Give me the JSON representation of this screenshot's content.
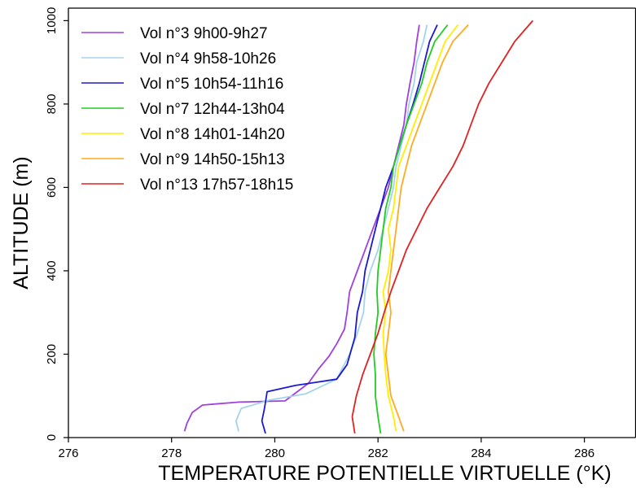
{
  "chart_data": {
    "type": "line",
    "title": "",
    "xlabel": "TEMPERATURE POTENTIELLE VIRTUELLE (°K)",
    "ylabel": "ALTITUDE (m)",
    "xlim": [
      276,
      287
    ],
    "ylim": [
      0,
      1030
    ],
    "xticks": [
      276,
      278,
      280,
      282,
      284,
      286
    ],
    "yticks": [
      0,
      200,
      400,
      600,
      800,
      1000
    ],
    "grid": false,
    "legend_position": "top-left",
    "series": [
      {
        "name": "Vol n°3 9h00-9h27",
        "color": "#a040e0",
        "points": [
          [
            278.25,
            15
          ],
          [
            278.3,
            35
          ],
          [
            278.4,
            60
          ],
          [
            278.6,
            78
          ],
          [
            279.3,
            85
          ],
          [
            280.2,
            88
          ],
          [
            280.65,
            130
          ],
          [
            280.85,
            165
          ],
          [
            281.05,
            195
          ],
          [
            281.2,
            225
          ],
          [
            281.35,
            260
          ],
          [
            281.4,
            300
          ],
          [
            281.45,
            350
          ],
          [
            281.6,
            400
          ],
          [
            281.75,
            450
          ],
          [
            281.9,
            500
          ],
          [
            282.05,
            550
          ],
          [
            282.2,
            600
          ],
          [
            282.3,
            650
          ],
          [
            282.4,
            700
          ],
          [
            282.5,
            750
          ],
          [
            282.55,
            800
          ],
          [
            282.62,
            850
          ],
          [
            282.7,
            900
          ],
          [
            282.75,
            950
          ],
          [
            282.8,
            990
          ]
        ]
      },
      {
        "name": "Vol n°4 9h58-10h26",
        "color": "#a6d3ec",
        "points": [
          [
            279.3,
            15
          ],
          [
            279.25,
            40
          ],
          [
            279.35,
            70
          ],
          [
            279.9,
            90
          ],
          [
            280.6,
            105
          ],
          [
            281.2,
            140
          ],
          [
            281.45,
            200
          ],
          [
            281.6,
            250
          ],
          [
            281.72,
            300
          ],
          [
            281.75,
            350
          ],
          [
            281.85,
            400
          ],
          [
            282.0,
            450
          ],
          [
            282.1,
            500
          ],
          [
            282.2,
            550
          ],
          [
            282.3,
            600
          ],
          [
            282.35,
            650
          ],
          [
            282.45,
            700
          ],
          [
            282.55,
            750
          ],
          [
            282.6,
            800
          ],
          [
            282.7,
            850
          ],
          [
            282.75,
            900
          ],
          [
            282.88,
            950
          ],
          [
            282.95,
            990
          ]
        ]
      },
      {
        "name": "Vol n°5 10h54-11h16",
        "color": "#1a1ad0",
        "points": [
          [
            279.82,
            10
          ],
          [
            279.75,
            40
          ],
          [
            279.8,
            70
          ],
          [
            279.85,
            110
          ],
          [
            280.4,
            125
          ],
          [
            281.2,
            140
          ],
          [
            281.4,
            175
          ],
          [
            281.55,
            240
          ],
          [
            281.6,
            300
          ],
          [
            281.7,
            350
          ],
          [
            281.75,
            400
          ],
          [
            281.85,
            450
          ],
          [
            281.95,
            500
          ],
          [
            282.05,
            550
          ],
          [
            282.15,
            600
          ],
          [
            282.3,
            650
          ],
          [
            282.42,
            700
          ],
          [
            282.55,
            750
          ],
          [
            282.68,
            800
          ],
          [
            282.8,
            850
          ],
          [
            282.9,
            900
          ],
          [
            283.0,
            950
          ],
          [
            283.15,
            990
          ]
        ]
      },
      {
        "name": "Vol n°7 12h44-13h04",
        "color": "#22cc22",
        "points": [
          [
            282.05,
            10
          ],
          [
            282.0,
            50
          ],
          [
            281.95,
            100
          ],
          [
            281.95,
            150
          ],
          [
            281.92,
            200
          ],
          [
            281.95,
            250
          ],
          [
            282.0,
            300
          ],
          [
            281.98,
            350
          ],
          [
            282.0,
            400
          ],
          [
            282.05,
            450
          ],
          [
            282.1,
            500
          ],
          [
            282.15,
            550
          ],
          [
            282.25,
            600
          ],
          [
            282.3,
            650
          ],
          [
            282.42,
            700
          ],
          [
            282.55,
            750
          ],
          [
            282.7,
            800
          ],
          [
            282.85,
            850
          ],
          [
            282.95,
            900
          ],
          [
            283.1,
            950
          ],
          [
            283.35,
            990
          ]
        ]
      },
      {
        "name": "Vol n°8 14h01-14h20",
        "color": "#ffee00",
        "points": [
          [
            282.35,
            15
          ],
          [
            282.3,
            50
          ],
          [
            282.2,
            100
          ],
          [
            282.15,
            150
          ],
          [
            282.12,
            200
          ],
          [
            282.1,
            250
          ],
          [
            282.15,
            300
          ],
          [
            282.1,
            350
          ],
          [
            282.2,
            400
          ],
          [
            282.25,
            450
          ],
          [
            282.2,
            500
          ],
          [
            282.3,
            550
          ],
          [
            282.35,
            600
          ],
          [
            282.4,
            650
          ],
          [
            282.55,
            700
          ],
          [
            282.7,
            750
          ],
          [
            282.85,
            800
          ],
          [
            283.0,
            850
          ],
          [
            283.15,
            900
          ],
          [
            283.3,
            950
          ],
          [
            283.55,
            990
          ]
        ]
      },
      {
        "name": "Vol n°9 14h50-15h13",
        "color": "#ffaa22",
        "points": [
          [
            282.5,
            15
          ],
          [
            282.4,
            50
          ],
          [
            282.25,
            100
          ],
          [
            282.2,
            150
          ],
          [
            282.15,
            200
          ],
          [
            282.2,
            250
          ],
          [
            282.25,
            300
          ],
          [
            282.2,
            350
          ],
          [
            282.25,
            400
          ],
          [
            282.3,
            450
          ],
          [
            282.35,
            500
          ],
          [
            282.4,
            550
          ],
          [
            282.45,
            600
          ],
          [
            282.55,
            650
          ],
          [
            282.65,
            700
          ],
          [
            282.8,
            750
          ],
          [
            282.95,
            800
          ],
          [
            283.1,
            850
          ],
          [
            283.25,
            900
          ],
          [
            283.45,
            950
          ],
          [
            283.75,
            990
          ]
        ]
      },
      {
        "name": "Vol n°13 17h57-18h15",
        "color": "#e02222",
        "points": [
          [
            281.55,
            10
          ],
          [
            281.5,
            50
          ],
          [
            281.58,
            100
          ],
          [
            281.7,
            150
          ],
          [
            281.85,
            200
          ],
          [
            282.0,
            250
          ],
          [
            282.12,
            300
          ],
          [
            282.25,
            350
          ],
          [
            282.4,
            400
          ],
          [
            282.55,
            450
          ],
          [
            282.75,
            500
          ],
          [
            282.95,
            550
          ],
          [
            283.2,
            600
          ],
          [
            283.45,
            650
          ],
          [
            283.65,
            700
          ],
          [
            283.8,
            750
          ],
          [
            283.95,
            800
          ],
          [
            284.15,
            850
          ],
          [
            284.4,
            900
          ],
          [
            284.65,
            950
          ],
          [
            285.0,
            1000
          ]
        ]
      }
    ]
  }
}
